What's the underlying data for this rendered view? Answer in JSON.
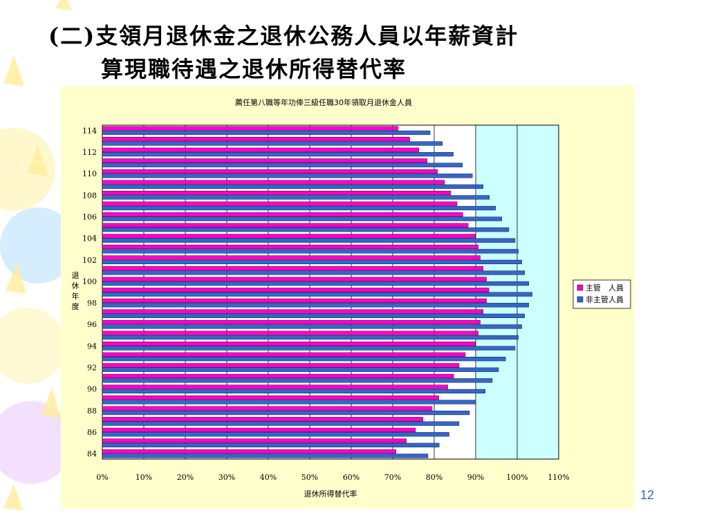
{
  "slide": {
    "title_line1": "(二)支領月退休金之退休公務人員以年薪資計",
    "title_line2": "算現職待遇之退休所得替代率",
    "page_number": "12"
  },
  "colors": {
    "panel_bg": "#ffffcc",
    "plot_bg": "#ccffff",
    "series_manager": "#ff00cc",
    "series_non_manager": "#3366cc"
  },
  "chart_data": {
    "type": "bar",
    "orientation": "horizontal",
    "title": "薦任第八職等年功俸三級任職30年領取月退休金人員",
    "xlabel": "退休所得替代率",
    "ylabel": "退休年度",
    "xlim": [
      0,
      110
    ],
    "x_ticks": [
      "0%",
      "10%",
      "20%",
      "30%",
      "40%",
      "50%",
      "60%",
      "70%",
      "80%",
      "90%",
      "100%",
      "110%"
    ],
    "grid": "vertical",
    "legend_position": "right",
    "categories": [
      84,
      85,
      86,
      87,
      88,
      89,
      90,
      91,
      92,
      93,
      94,
      95,
      96,
      97,
      98,
      99,
      100,
      101,
      102,
      103,
      104,
      105,
      106,
      107,
      108,
      109,
      110,
      111,
      112,
      113,
      114
    ],
    "y_tick_labels": [
      "84",
      "86",
      "88",
      "90",
      "92",
      "94",
      "96",
      "98",
      "100",
      "102",
      "104",
      "106",
      "108",
      "110",
      "112",
      "114"
    ],
    "series": [
      {
        "name": "主管　人員",
        "values": [
          70.8,
          73.3,
          75.5,
          77.3,
          79.5,
          81.1,
          83.3,
          84.7,
          86.0,
          87.5,
          89.9,
          90.6,
          91.1,
          91.8,
          92.6,
          93.2,
          92.6,
          91.8,
          91.1,
          90.6,
          89.9,
          88.2,
          86.9,
          85.5,
          84.0,
          82.5,
          80.8,
          78.3,
          76.3,
          74.1,
          71.3
        ]
      },
      {
        "name": "非主管人員",
        "values": [
          78.5,
          81.2,
          83.6,
          86.0,
          88.5,
          90.0,
          92.3,
          94.0,
          95.5,
          97.2,
          99.5,
          100.3,
          101.1,
          101.8,
          102.8,
          103.6,
          102.8,
          101.8,
          101.1,
          100.3,
          99.5,
          98.0,
          96.3,
          94.8,
          93.3,
          91.8,
          89.2,
          86.8,
          84.6,
          82.0,
          79.0
        ]
      }
    ]
  }
}
